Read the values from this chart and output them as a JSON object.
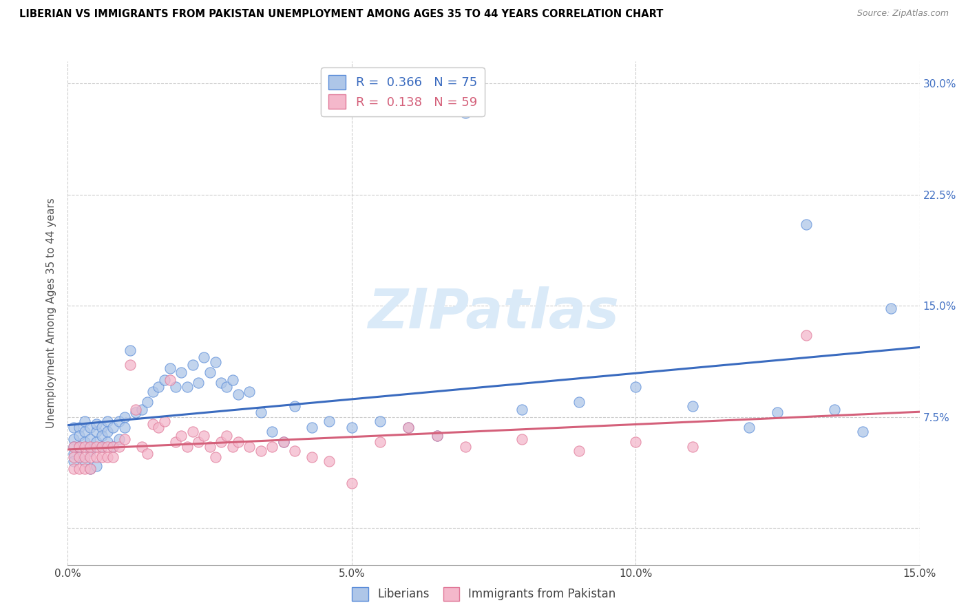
{
  "title": "LIBERIAN VS IMMIGRANTS FROM PAKISTAN UNEMPLOYMENT AMONG AGES 35 TO 44 YEARS CORRELATION CHART",
  "source": "Source: ZipAtlas.com",
  "ylabel": "Unemployment Among Ages 35 to 44 years",
  "xmin": 0.0,
  "xmax": 0.15,
  "ymin": -0.025,
  "ymax": 0.315,
  "ytick_positions": [
    0.0,
    0.075,
    0.15,
    0.225,
    0.3
  ],
  "ytick_labels_right": [
    "",
    "7.5%",
    "15.0%",
    "22.5%",
    "30.0%"
  ],
  "xtick_positions": [
    0.0,
    0.01,
    0.02,
    0.03,
    0.04,
    0.05,
    0.06,
    0.07,
    0.08,
    0.09,
    0.1,
    0.11,
    0.12,
    0.13,
    0.14,
    0.15
  ],
  "xtick_labels": [
    "0.0%",
    "",
    "",
    "",
    "",
    "5.0%",
    "",
    "",
    "",
    "",
    "10.0%",
    "",
    "",
    "",
    "",
    "15.0%"
  ],
  "legend_labels": [
    "Liberians",
    "Immigrants from Pakistan"
  ],
  "liberian_R": "0.366",
  "liberian_N": "75",
  "pakistan_R": "0.138",
  "pakistan_N": "59",
  "liberian_color": "#aec6e8",
  "pakistan_color": "#f4b8cb",
  "liberian_edge_color": "#5b8dd9",
  "pakistan_edge_color": "#e07898",
  "liberian_line_color": "#3a6bbf",
  "pakistan_line_color": "#d4607a",
  "watermark_color": "#daeaf8",
  "liberian_x": [
    0.001,
    0.001,
    0.001,
    0.001,
    0.001,
    0.002,
    0.002,
    0.002,
    0.002,
    0.003,
    0.003,
    0.003,
    0.003,
    0.004,
    0.004,
    0.004,
    0.004,
    0.005,
    0.005,
    0.005,
    0.005,
    0.006,
    0.006,
    0.006,
    0.007,
    0.007,
    0.007,
    0.008,
    0.008,
    0.009,
    0.009,
    0.01,
    0.01,
    0.011,
    0.012,
    0.013,
    0.014,
    0.015,
    0.016,
    0.017,
    0.018,
    0.019,
    0.02,
    0.021,
    0.022,
    0.023,
    0.024,
    0.025,
    0.026,
    0.027,
    0.028,
    0.029,
    0.03,
    0.032,
    0.034,
    0.036,
    0.038,
    0.04,
    0.043,
    0.046,
    0.05,
    0.055,
    0.06,
    0.065,
    0.07,
    0.08,
    0.09,
    0.1,
    0.11,
    0.12,
    0.125,
    0.13,
    0.135,
    0.14,
    0.145
  ],
  "liberian_y": [
    0.06,
    0.068,
    0.055,
    0.05,
    0.045,
    0.068,
    0.062,
    0.055,
    0.048,
    0.065,
    0.058,
    0.072,
    0.045,
    0.068,
    0.06,
    0.052,
    0.04,
    0.065,
    0.058,
    0.07,
    0.042,
    0.068,
    0.062,
    0.055,
    0.072,
    0.065,
    0.058,
    0.068,
    0.055,
    0.072,
    0.06,
    0.075,
    0.068,
    0.12,
    0.078,
    0.08,
    0.085,
    0.092,
    0.095,
    0.1,
    0.108,
    0.095,
    0.105,
    0.095,
    0.11,
    0.098,
    0.115,
    0.105,
    0.112,
    0.098,
    0.095,
    0.1,
    0.09,
    0.092,
    0.078,
    0.065,
    0.058,
    0.082,
    0.068,
    0.072,
    0.068,
    0.072,
    0.068,
    0.062,
    0.28,
    0.08,
    0.085,
    0.095,
    0.082,
    0.068,
    0.078,
    0.205,
    0.08,
    0.065,
    0.148
  ],
  "pakistan_x": [
    0.001,
    0.001,
    0.001,
    0.002,
    0.002,
    0.002,
    0.003,
    0.003,
    0.003,
    0.004,
    0.004,
    0.004,
    0.005,
    0.005,
    0.006,
    0.006,
    0.007,
    0.007,
    0.008,
    0.008,
    0.009,
    0.01,
    0.011,
    0.012,
    0.013,
    0.014,
    0.015,
    0.016,
    0.017,
    0.018,
    0.019,
    0.02,
    0.021,
    0.022,
    0.023,
    0.024,
    0.025,
    0.026,
    0.027,
    0.028,
    0.029,
    0.03,
    0.032,
    0.034,
    0.036,
    0.038,
    0.04,
    0.043,
    0.046,
    0.05,
    0.055,
    0.06,
    0.065,
    0.07,
    0.08,
    0.09,
    0.1,
    0.11,
    0.13
  ],
  "pakistan_y": [
    0.055,
    0.048,
    0.04,
    0.055,
    0.048,
    0.04,
    0.055,
    0.048,
    0.04,
    0.055,
    0.048,
    0.04,
    0.055,
    0.048,
    0.055,
    0.048,
    0.055,
    0.048,
    0.055,
    0.048,
    0.055,
    0.06,
    0.11,
    0.08,
    0.055,
    0.05,
    0.07,
    0.068,
    0.072,
    0.1,
    0.058,
    0.062,
    0.055,
    0.065,
    0.058,
    0.062,
    0.055,
    0.048,
    0.058,
    0.062,
    0.055,
    0.058,
    0.055,
    0.052,
    0.055,
    0.058,
    0.052,
    0.048,
    0.045,
    0.03,
    0.058,
    0.068,
    0.062,
    0.055,
    0.06,
    0.052,
    0.058,
    0.055,
    0.13
  ]
}
